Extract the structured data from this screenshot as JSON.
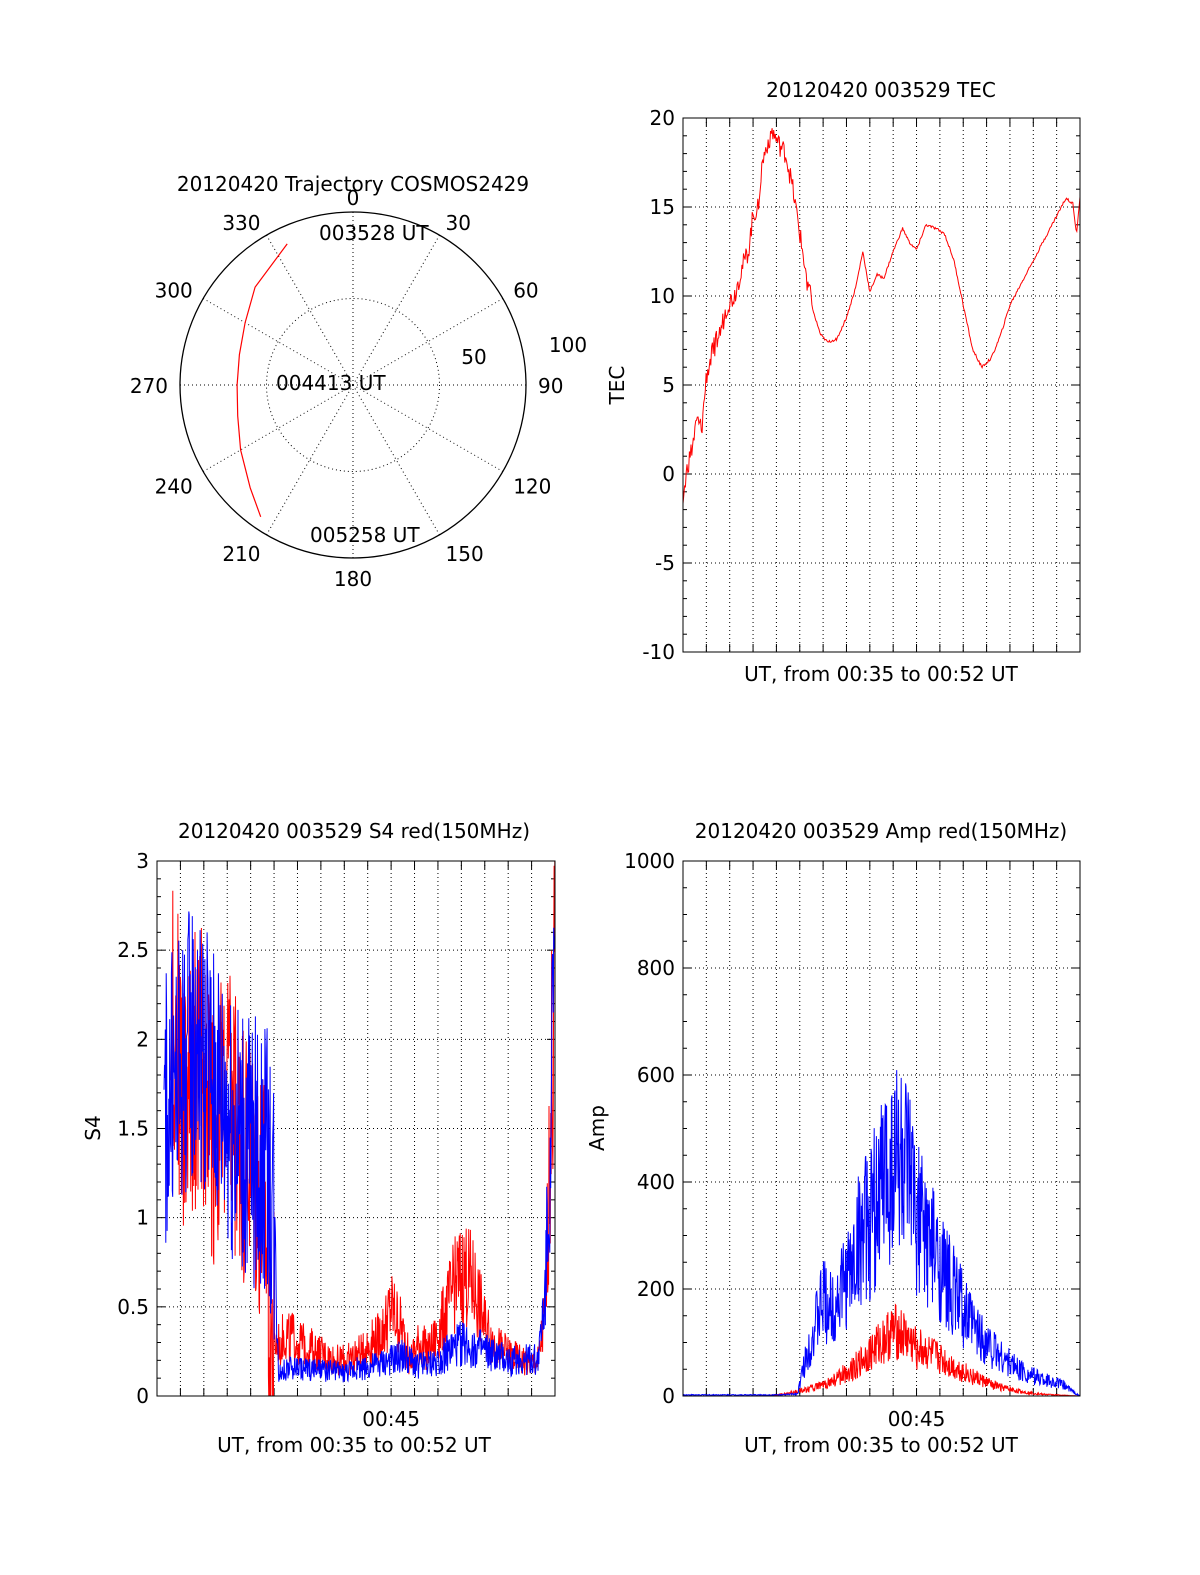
{
  "chart_data": [
    {
      "type": "polar",
      "title": "20120420 Trajectory COSMOS2429",
      "angle_ticks": [
        "0",
        "30",
        "60",
        "90",
        "120",
        "150",
        "180",
        "210",
        "240",
        "270",
        "300",
        "330"
      ],
      "radius_ticks": [
        "50",
        "100"
      ],
      "radius_range": [
        0,
        100
      ],
      "grid": true,
      "series": [
        {
          "color": "#ff0000",
          "points": [
            {
              "azimuth": 335,
              "zenith": 90
            },
            {
              "azimuth": 315,
              "zenith": 80
            },
            {
              "azimuth": 300,
              "zenith": 72
            },
            {
              "azimuth": 285,
              "zenith": 68
            },
            {
              "azimuth": 270,
              "zenith": 67
            },
            {
              "azimuth": 255,
              "zenith": 69
            },
            {
              "azimuth": 240,
              "zenith": 75
            },
            {
              "azimuth": 225,
              "zenith": 84
            },
            {
              "azimuth": 215,
              "zenith": 93
            }
          ]
        }
      ],
      "annotations": [
        "003528 UT",
        "004413 UT",
        "005258 UT"
      ]
    },
    {
      "type": "line",
      "title": "20120420 003529 TEC",
      "xlabel": "UT, from 00:35 to 00:52 UT",
      "ylabel": "TEC",
      "xlim": [
        0,
        17
      ],
      "ylim": [
        -10,
        20
      ],
      "yticks": [
        "-10",
        "-5",
        "0",
        "5",
        "10",
        "15",
        "20"
      ],
      "grid": true,
      "series": [
        {
          "color": "#ff0000",
          "x": [
            0,
            0.2,
            0.4,
            0.6,
            0.8,
            1.0,
            1.3,
            1.6,
            1.9,
            2.2,
            2.5,
            2.8,
            3.0,
            3.2,
            3.4,
            3.6,
            3.8,
            4.1,
            4.4,
            4.7,
            5.0,
            5.3,
            5.6,
            5.9,
            6.2,
            6.6,
            7.0,
            7.4,
            7.7,
            8.0,
            8.3,
            8.6,
            9.0,
            9.4,
            9.7,
            10.0,
            10.4,
            10.8,
            11.2,
            11.6,
            12.0,
            12.4,
            12.8,
            13.2,
            13.6,
            14.0,
            14.4,
            14.8,
            15.2,
            15.6,
            16.0,
            16.4,
            16.7,
            16.85,
            17.0
          ],
          "y": [
            -1.5,
            0.5,
            1.5,
            3,
            2.5,
            5.5,
            7,
            8,
            9.5,
            10,
            11.5,
            12.5,
            14.5,
            15,
            17.5,
            18.5,
            19.3,
            18.5,
            18,
            16,
            13.5,
            11,
            9,
            7.8,
            7.4,
            7.6,
            8.8,
            10.5,
            12.5,
            10.2,
            11.2,
            11,
            12.5,
            13.8,
            13,
            12.6,
            14,
            13.8,
            13.5,
            12,
            9.5,
            7,
            6,
            6.5,
            7.8,
            9.5,
            10.5,
            11.5,
            12.5,
            13.5,
            14.5,
            15.5,
            15.2,
            13.5,
            15.5
          ]
        }
      ]
    },
    {
      "type": "line",
      "title": "20120420 003529 S4 red(150MHz)",
      "xlabel": "UT, from 00:35 to 00:52 UT",
      "ylabel": "S4",
      "xlim": [
        0,
        17
      ],
      "ylim": [
        0,
        3
      ],
      "yticks": [
        "0",
        "0.5",
        "1",
        "1.5",
        "2",
        "2.5",
        "3"
      ],
      "xticks": [
        "00:45"
      ],
      "xtick_values": [
        10
      ],
      "grid": true,
      "series": [
        {
          "color": "#ff0000",
          "x": [
            0.6,
            1.2,
            1.8,
            2.4,
            3.0,
            3.6,
            4.2,
            4.6,
            4.9,
            5.2,
            5.6,
            6.0,
            6.4,
            6.8,
            7.2,
            7.6,
            8.0,
            8.4,
            8.8,
            9.2,
            9.6,
            10.0,
            10.4,
            10.8,
            11.2,
            11.6,
            12.0,
            12.4,
            12.8,
            13.2,
            13.6,
            14.0,
            14.4,
            14.8,
            15.2,
            15.6,
            16.0,
            16.3,
            16.6,
            16.8,
            17.0
          ],
          "y": [
            2.2,
            1.6,
            1.9,
            1.5,
            1.7,
            1.4,
            1.2,
            1.0,
            0.25,
            0.3,
            0.35,
            0.3,
            0.28,
            0.25,
            0.22,
            0.2,
            0.2,
            0.22,
            0.25,
            0.3,
            0.35,
            0.5,
            0.4,
            0.2,
            0.3,
            0.25,
            0.35,
            0.5,
            0.65,
            0.7,
            0.6,
            0.4,
            0.3,
            0.25,
            0.22,
            0.2,
            0.18,
            0.2,
            0.5,
            1.5,
            2.5
          ]
        },
        {
          "color": "#0000ff",
          "x": [
            0.3,
            1.0,
            1.6,
            2.2,
            2.8,
            3.4,
            4.0,
            4.6,
            4.95,
            5.2,
            5.6,
            6.0,
            6.5,
            7.0,
            7.5,
            8.0,
            8.5,
            9.0,
            9.5,
            10.0,
            10.5,
            11.0,
            11.5,
            12.0,
            12.5,
            13.0,
            13.5,
            14.0,
            14.5,
            15.0,
            15.5,
            16.0,
            16.3,
            16.6,
            16.8,
            17.0
          ],
          "y": [
            1.6,
            1.8,
            2.0,
            1.8,
            1.7,
            1.5,
            1.4,
            1.3,
            1.2,
            0.13,
            0.15,
            0.16,
            0.15,
            0.14,
            0.14,
            0.13,
            0.15,
            0.16,
            0.18,
            0.2,
            0.22,
            0.18,
            0.17,
            0.2,
            0.25,
            0.3,
            0.28,
            0.25,
            0.22,
            0.2,
            0.2,
            0.2,
            0.22,
            0.6,
            1.5,
            2.3
          ]
        }
      ]
    },
    {
      "type": "line",
      "title": "20120420 003529 Amp red(150MHz)",
      "xlabel": "UT, from 00:35 to 00:52 UT",
      "ylabel": "Amp",
      "xlim": [
        0,
        17
      ],
      "ylim": [
        0,
        1000
      ],
      "yticks": [
        "0",
        "200",
        "400",
        "600",
        "800",
        "1000"
      ],
      "xticks": [
        "00:45"
      ],
      "xtick_values": [
        10
      ],
      "grid": true,
      "series": [
        {
          "color": "#ff0000",
          "x": [
            0,
            1,
            2,
            3,
            4,
            4.5,
            5,
            5.5,
            6,
            6.5,
            7,
            7.5,
            8,
            8.5,
            9,
            9.5,
            10,
            10.5,
            11,
            11.5,
            12,
            12.5,
            13,
            13.5,
            14,
            14.5,
            15,
            15.5,
            16,
            16.5,
            17
          ],
          "y": [
            0,
            0,
            0,
            0,
            2,
            5,
            10,
            15,
            20,
            30,
            45,
            60,
            80,
            100,
            120,
            110,
            90,
            80,
            70,
            55,
            45,
            35,
            25,
            18,
            12,
            8,
            5,
            3,
            2,
            1,
            0
          ]
        },
        {
          "color": "#0000ff",
          "x": [
            0,
            1,
            2,
            3,
            4,
            4.5,
            4.9,
            5.2,
            5.6,
            6.0,
            6.4,
            6.8,
            7.2,
            7.6,
            8.0,
            8.4,
            8.8,
            9.2,
            9.6,
            10.0,
            10.4,
            10.8,
            11.2,
            11.6,
            12.0,
            12.4,
            12.8,
            13.2,
            13.6,
            14.0,
            14.4,
            14.8,
            15.2,
            15.6,
            16.0,
            16.4,
            16.8,
            17.0
          ],
          "y": [
            2,
            2,
            2,
            2,
            2,
            3,
            4,
            60,
            120,
            180,
            160,
            200,
            230,
            300,
            320,
            380,
            420,
            450,
            400,
            340,
            300,
            260,
            220,
            200,
            160,
            130,
            110,
            90,
            75,
            60,
            50,
            40,
            35,
            30,
            25,
            18,
            5,
            0
          ]
        }
      ]
    }
  ]
}
